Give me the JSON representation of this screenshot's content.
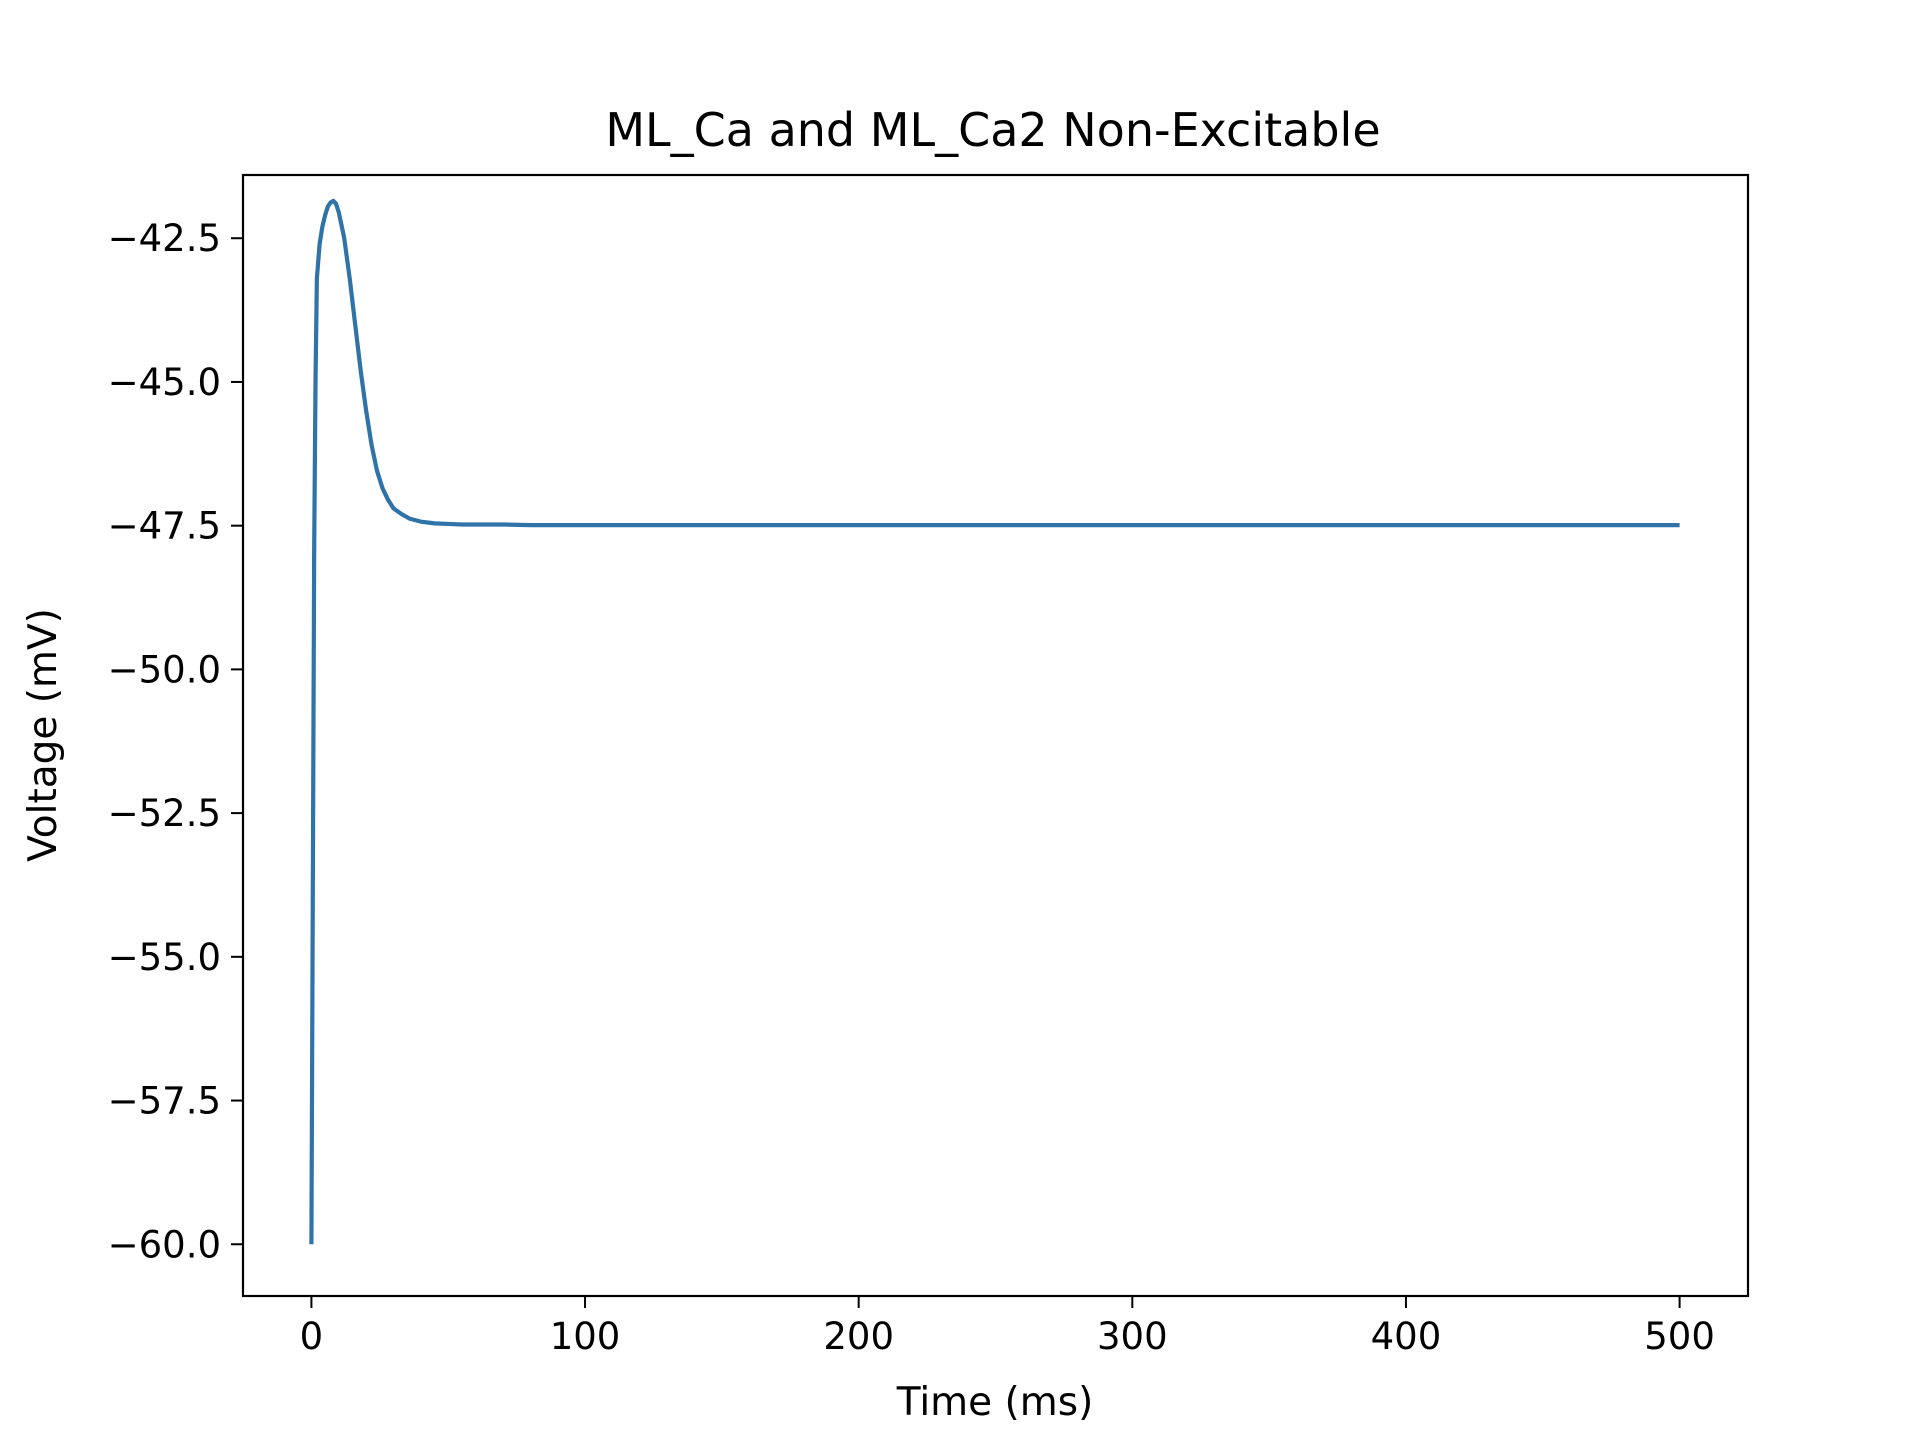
{
  "chart_data": {
    "type": "line",
    "title": "ML_Ca and ML_Ca2 Non-Excitable",
    "xlabel": "Time (ms)",
    "ylabel": "Voltage (mV)",
    "xlim": [
      -25,
      525
    ],
    "ylim": [
      -60.9,
      -41.4
    ],
    "grid": false,
    "legend": "none",
    "x_ticks": [
      0,
      100,
      200,
      300,
      400,
      500
    ],
    "x_tick_labels": [
      "0",
      "100",
      "200",
      "300",
      "400",
      "500"
    ],
    "y_ticks": [
      -42.5,
      -45.0,
      -47.5,
      -50.0,
      -52.5,
      -55.0,
      -57.5,
      -60.0
    ],
    "y_tick_labels": [
      "−42.5",
      "−45.0",
      "−47.5",
      "−50.0",
      "−52.5",
      "−55.0",
      "−57.5",
      "−60.0"
    ],
    "series": [
      {
        "color": "#2f73a8",
        "x": [
          0,
          0.5,
          1,
          1.5,
          2,
          3,
          4,
          5,
          6,
          7,
          8,
          9,
          10,
          12,
          14,
          16,
          18,
          20,
          22,
          24,
          26,
          28,
          30,
          33,
          36,
          40,
          45,
          50,
          55,
          60,
          70,
          80,
          100,
          150,
          200,
          300,
          400,
          500
        ],
        "y": [
          -60.0,
          -54.0,
          -48.0,
          -45.0,
          -43.2,
          -42.6,
          -42.3,
          -42.1,
          -41.95,
          -41.88,
          -41.85,
          -41.9,
          -42.05,
          -42.5,
          -43.2,
          -44.0,
          -44.8,
          -45.5,
          -46.1,
          -46.55,
          -46.85,
          -47.05,
          -47.2,
          -47.3,
          -47.38,
          -47.43,
          -47.46,
          -47.47,
          -47.48,
          -47.48,
          -47.48,
          -47.49,
          -47.49,
          -47.49,
          -47.49,
          -47.49,
          -47.49,
          -47.49
        ]
      }
    ]
  }
}
